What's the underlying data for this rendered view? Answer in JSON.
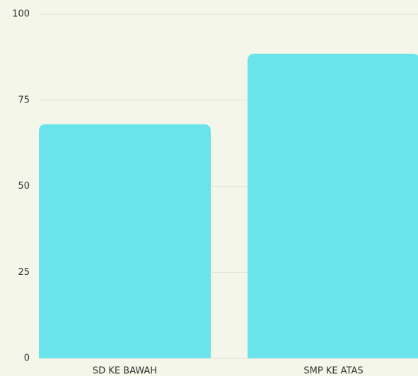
{
  "chart_data": {
    "type": "bar",
    "categories": [
      "SD KE BAWAH",
      "SMP KE ATAS"
    ],
    "values": [
      68,
      88.5
    ],
    "color": "#6ae4ea",
    "ylim": [
      0,
      100
    ],
    "yticks": [
      0,
      25,
      50,
      75,
      100
    ],
    "grid": true
  }
}
